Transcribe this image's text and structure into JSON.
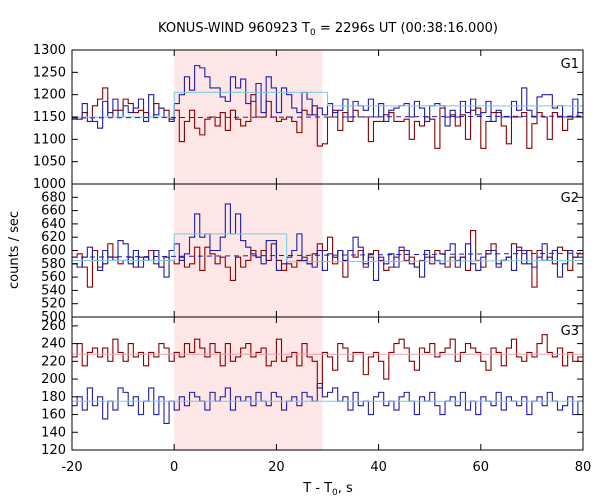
{
  "chart_data": {
    "type": "line",
    "title": {
      "main": "KONUS-WIND 960923 T",
      "sub": "0",
      "rest": " = 2296s UT (00:38:16.000)"
    },
    "xlabel": {
      "main": "T - T",
      "sub": "0",
      "rest": ", s"
    },
    "ylabel": "counts / sec",
    "xlim": [
      -20,
      80
    ],
    "xticks": [
      -20,
      0,
      20,
      40,
      60,
      80
    ],
    "highlight_interval": [
      0,
      29
    ],
    "colors": {
      "red": "#8b0000",
      "blue": "#1f1fa8",
      "fit_cyan": "#7ec8e3",
      "fit_pink": "#e8a0b0",
      "dashed": "#1f1fa8",
      "shade": "#fde6e6"
    },
    "panels": [
      {
        "label": "G1",
        "ylim": [
          1000,
          1300
        ],
        "yticks": [
          1000,
          1050,
          1100,
          1150,
          1200,
          1250,
          1300
        ],
        "series": [
          {
            "color": "red",
            "x0": -20,
            "dx": 1,
            "values": [
              1150,
              1145,
              1160,
              1140,
              1175,
              1190,
              1215,
              1150,
              1165,
              1165,
              1190,
              1180,
              1160,
              1165,
              1160,
              1150,
              1180,
              1170,
              1165,
              1145,
              1165,
              1095,
              1140,
              1165,
              1125,
              1110,
              1145,
              1150,
              1130,
              1160,
              1120,
              1165,
              1145,
              1130,
              1140,
              1200,
              1150,
              1150,
              1185,
              1150,
              1140,
              1145,
              1150,
              1140,
              1115,
              1165,
              1155,
              1175,
              1085,
              1090,
              1150,
              1165,
              1120,
              1160,
              1140,
              1165,
              1150,
              1150,
              1095,
              1140,
              1140,
              1155,
              1160,
              1140,
              1140,
              1145,
              1100,
              1140,
              1130,
              1150,
              1145,
              1080,
              1170,
              1150,
              1155,
              1130,
              1155,
              1100,
              1165,
              1170,
              1080,
              1140,
              1160,
              1160,
              1130,
              1090,
              1150,
              1150,
              1160,
              1080,
              1135,
              1160,
              1150,
              1100,
              1160,
              1150,
              1120,
              1145,
              1150,
              1160
            ]
          },
          {
            "color": "blue",
            "x0": -20,
            "dx": 1,
            "values": [
              1145,
              1150,
              1180,
              1150,
              1140,
              1125,
              1185,
              1160,
              1190,
              1150,
              1175,
              1160,
              1170,
              1190,
              1140,
              1200,
              1155,
              1170,
              1150,
              1140,
              1180,
              1200,
              1240,
              1210,
              1265,
              1260,
              1240,
              1215,
              1215,
              1195,
              1185,
              1240,
              1215,
              1235,
              1180,
              1185,
              1225,
              1160,
              1240,
              1215,
              1160,
              1215,
              1200,
              1170,
              1160,
              1205,
              1190,
              1155,
              1170,
              1155,
              1180,
              1160,
              1165,
              1190,
              1150,
              1185,
              1175,
              1165,
              1190,
              1150,
              1180,
              1140,
              1165,
              1170,
              1175,
              1180,
              1150,
              1185,
              1170,
              1140,
              1175,
              1180,
              1175,
              1130,
              1165,
              1150,
              1185,
              1160,
              1190,
              1155,
              1160,
              1185,
              1140,
              1165,
              1150,
              1150,
              1185,
              1165,
              1215,
              1165,
              1150,
              1195,
              1200,
              1200,
              1170,
              1175,
              1150,
              1150,
              1190,
              1160
            ]
          }
        ],
        "fits": [
          {
            "color": "fit_cyan",
            "segments": [
              [
                -20,
                1150,
                0,
                1150
              ],
              [
                0,
                1205,
                30,
                1205
              ],
              [
                30,
                1175,
                80,
                1175
              ]
            ]
          },
          {
            "color": "dashed",
            "dash": true,
            "segments": [
              [
                -20,
                1148,
                80,
                1152
              ]
            ]
          }
        ]
      },
      {
        "label": "G2",
        "ylim": [
          500,
          700
        ],
        "yticks": [
          500,
          520,
          540,
          560,
          580,
          600,
          620,
          640,
          660,
          680
        ],
        "series": [
          {
            "color": "red",
            "x0": -20,
            "dx": 1,
            "values": [
              590,
              595,
              575,
              545,
              600,
              575,
              580,
              610,
              590,
              580,
              585,
              590,
              575,
              590,
              585,
              600,
              580,
              575,
              590,
              585,
              580,
              590,
              575,
              580,
              605,
              570,
              605,
              595,
              580,
              590,
              575,
              555,
              590,
              575,
              585,
              600,
              590,
              600,
              585,
              610,
              585,
              570,
              580,
              575,
              585,
              590,
              580,
              595,
              610,
              600,
              620,
              580,
              600,
              560,
              600,
              590,
              600,
              580,
              595,
              600,
              585,
              570,
              575,
              590,
              600,
              585,
              590,
              575,
              585,
              590,
              580,
              600,
              595,
              575,
              590,
              585,
              590,
              570,
              630,
              585,
              575,
              600,
              610,
              580,
              585,
              590,
              610,
              600,
              580,
              600,
              545,
              600,
              585,
              590,
              580,
              605,
              600,
              570,
              590,
              595
            ]
          },
          {
            "color": "blue",
            "x0": -20,
            "dx": 1,
            "values": [
              580,
              575,
              590,
              605,
              585,
              570,
              600,
              590,
              585,
              615,
              610,
              580,
              600,
              575,
              590,
              585,
              600,
              575,
              560,
              600,
              610,
              585,
              595,
              620,
              655,
              620,
              625,
              600,
              600,
              620,
              670,
              625,
              655,
              615,
              605,
              595,
              590,
              580,
              615,
              615,
              570,
              580,
              590,
              600,
              625,
              585,
              580,
              575,
              600,
              570,
              595,
              590,
              600,
              585,
              600,
              620,
              605,
              575,
              590,
              555,
              590,
              580,
              595,
              575,
              605,
              600,
              580,
              575,
              560,
              600,
              590,
              585,
              580,
              600,
              610,
              575,
              590,
              610,
              580,
              570,
              590,
              595,
              600,
              575,
              585,
              590,
              570,
              605,
              600,
              580,
              575,
              590,
              610,
              585,
              600,
              560,
              580,
              600,
              590,
              590
            ]
          }
        ],
        "fits": [
          {
            "color": "fit_cyan",
            "segments": [
              [
                -20,
                585,
                0,
                585
              ],
              [
                0,
                625,
                22,
                625
              ],
              [
                22,
                583,
                80,
                585
              ]
            ]
          },
          {
            "color": "dashed",
            "dash": true,
            "segments": [
              [
                -20,
                590,
                80,
                596
              ]
            ]
          }
        ]
      },
      {
        "label": "G3",
        "ylim": [
          120,
          270
        ],
        "yticks": [
          120,
          140,
          160,
          180,
          200,
          220,
          240,
          260
        ],
        "series": [
          {
            "color": "red",
            "x0": -20,
            "dx": 1,
            "values": [
              225,
              240,
              215,
              230,
              235,
              225,
              235,
              220,
              245,
              230,
              220,
              240,
              225,
              230,
              215,
              230,
              225,
              240,
              235,
              220,
              230,
              225,
              240,
              230,
              245,
              235,
              225,
              240,
              230,
              215,
              240,
              220,
              225,
              235,
              240,
              225,
              230,
              235,
              215,
              220,
              245,
              220,
              225,
              230,
              215,
              240,
              225,
              220,
              190,
              230,
              225,
              210,
              240,
              235,
              220,
              230,
              230,
              205,
              225,
              230,
              220,
              200,
              230,
              240,
              245,
              235,
              220,
              210,
              235,
              230,
              240,
              225,
              230,
              235,
              245,
              220,
              230,
              240,
              235,
              230,
              220,
              210,
              235,
              230,
              215,
              235,
              245,
              225,
              220,
              230,
              225,
              240,
              250,
              230,
              225,
              235,
              215,
              230,
              220,
              225
            ]
          },
          {
            "color": "blue",
            "x0": -20,
            "dx": 1,
            "values": [
              170,
              180,
              165,
              190,
              170,
              180,
              155,
              175,
              165,
              190,
              185,
              170,
              180,
              160,
              175,
              190,
              160,
              180,
              150,
              175,
              165,
              180,
              170,
              185,
              180,
              175,
              165,
              185,
              175,
              180,
              190,
              165,
              180,
              175,
              180,
              170,
              185,
              175,
              170,
              185,
              180,
              165,
              175,
              180,
              170,
              185,
              180,
              175,
              195,
              180,
              185,
              190,
              175,
              180,
              165,
              185,
              170,
              175,
              160,
              180,
              185,
              170,
              175,
              165,
              180,
              185,
              175,
              160,
              180,
              175,
              185,
              170,
              160,
              175,
              180,
              170,
              185,
              165,
              175,
              160,
              180,
              175,
              170,
              185,
              165,
              180,
              175,
              170,
              180,
              160,
              175,
              180,
              170,
              185,
              175,
              165,
              170,
              180,
              160,
              175
            ]
          }
        ],
        "fits": [
          {
            "color": "fit_pink",
            "segments": [
              [
                -20,
                228,
                80,
                228
              ]
            ]
          },
          {
            "color": "fit_cyan",
            "segments": [
              [
                -20,
                175,
                80,
                175
              ]
            ]
          }
        ]
      }
    ]
  }
}
